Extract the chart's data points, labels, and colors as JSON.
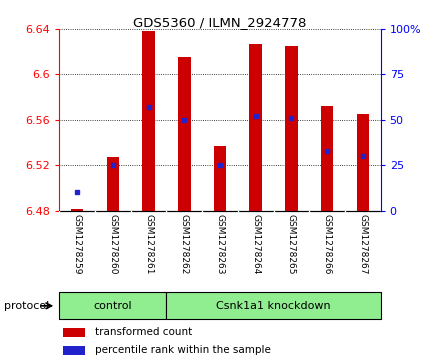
{
  "title": "GDS5360 / ILMN_2924778",
  "samples": [
    "GSM1278259",
    "GSM1278260",
    "GSM1278261",
    "GSM1278262",
    "GSM1278263",
    "GSM1278264",
    "GSM1278265",
    "GSM1278266",
    "GSM1278267"
  ],
  "transformed_count": [
    6.481,
    6.527,
    6.638,
    6.615,
    6.537,
    6.627,
    6.625,
    6.572,
    6.565
  ],
  "percentile_rank": [
    10,
    25,
    57,
    50,
    25,
    52,
    51,
    33,
    30
  ],
  "bar_bottom": 6.48,
  "ylim_left": [
    6.48,
    6.64
  ],
  "ylim_right": [
    0,
    100
  ],
  "yticks_left": [
    6.48,
    6.52,
    6.56,
    6.6,
    6.64
  ],
  "yticks_right": [
    0,
    25,
    50,
    75,
    100
  ],
  "ytick_labels_left": [
    "6.48",
    "6.52",
    "6.56",
    "6.6",
    "6.64"
  ],
  "ytick_labels_right": [
    "0",
    "25",
    "50",
    "75",
    "100%"
  ],
  "bar_color": "#cc0000",
  "dot_color": "#2222cc",
  "n_control": 3,
  "n_knockdown": 6,
  "control_label": "control",
  "knockdown_label": "Csnk1a1 knockdown",
  "protocol_label": "protocol",
  "legend_red_label": "transformed count",
  "legend_blue_label": "percentile rank within the sample",
  "green_color": "#90ee90",
  "gray_color": "#d3d3d3",
  "bar_width": 0.35
}
